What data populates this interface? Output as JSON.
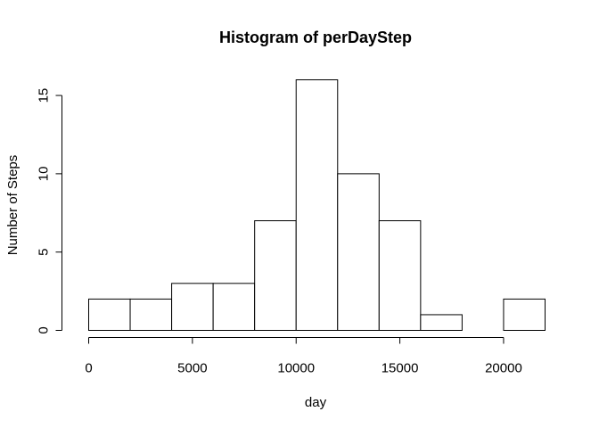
{
  "chart_data": {
    "type": "histogram",
    "title": "Histogram of perDayStep",
    "xlabel": "day",
    "ylabel": "Number of Steps",
    "bins": [
      {
        "start": 0,
        "end": 2000,
        "count": 2
      },
      {
        "start": 2000,
        "end": 4000,
        "count": 2
      },
      {
        "start": 4000,
        "end": 6000,
        "count": 3
      },
      {
        "start": 6000,
        "end": 8000,
        "count": 3
      },
      {
        "start": 8000,
        "end": 10000,
        "count": 7
      },
      {
        "start": 10000,
        "end": 12000,
        "count": 16
      },
      {
        "start": 12000,
        "end": 14000,
        "count": 10
      },
      {
        "start": 14000,
        "end": 16000,
        "count": 7
      },
      {
        "start": 16000,
        "end": 18000,
        "count": 1
      },
      {
        "start": 18000,
        "end": 20000,
        "count": 0
      },
      {
        "start": 20000,
        "end": 22000,
        "count": 2
      }
    ],
    "xticks": [
      0,
      5000,
      10000,
      15000,
      20000
    ],
    "yticks": [
      0,
      5,
      10,
      15
    ],
    "xlim": [
      0,
      22000
    ],
    "ylim": [
      0,
      16
    ],
    "grid": false,
    "colors": {
      "bar_fill": "#ffffff",
      "bar_stroke": "#000000"
    }
  }
}
